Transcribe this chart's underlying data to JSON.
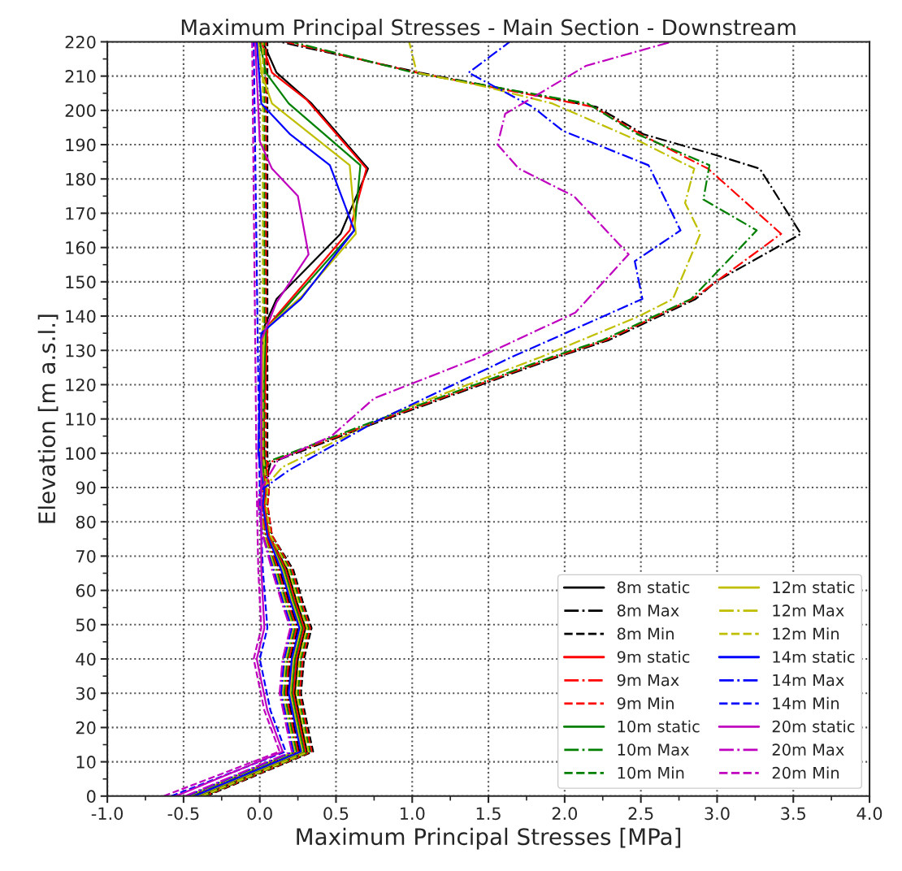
{
  "chart_data": {
    "type": "line",
    "title": "Maximum Principal Stresses - Main Section - Downstream",
    "xlabel": "Maximum Principal Stresses [MPa]",
    "ylabel": "Elevation [m a.s.l.]",
    "xlim": [
      -1.0,
      4.0
    ],
    "ylim": [
      0,
      220
    ],
    "xticks": [
      {
        "value": -1.0,
        "label": "-1.0"
      },
      {
        "value": -0.5,
        "label": "-0.5"
      },
      {
        "value": 0.0,
        "label": "0.0"
      },
      {
        "value": 0.5,
        "label": "0.5"
      },
      {
        "value": 1.0,
        "label": "1.0"
      },
      {
        "value": 1.5,
        "label": "1.5"
      },
      {
        "value": 2.0,
        "label": "2.0"
      },
      {
        "value": 2.5,
        "label": "2.5"
      },
      {
        "value": 3.0,
        "label": "3.0"
      },
      {
        "value": 3.5,
        "label": "3.5"
      },
      {
        "value": 4.0,
        "label": "4.0"
      }
    ],
    "yticks": [
      0,
      10,
      20,
      30,
      40,
      50,
      60,
      70,
      80,
      90,
      100,
      110,
      120,
      130,
      140,
      150,
      160,
      170,
      180,
      190,
      200,
      210,
      220
    ],
    "grid": true,
    "legend": "bottom right",
    "marker": "none",
    "series": [
      {
        "name": "8m static",
        "color": "#000000",
        "line_style": "solid",
        "x": [
          -0.39,
          0.31,
          0.29,
          0.23,
          0.25,
          0.3,
          0.24,
          0.18,
          0.06,
          0.03,
          0.04,
          0.03,
          0.02,
          0.11,
          0.53,
          0.71,
          0.34,
          0.11,
          0.02
        ],
        "values": [
          0,
          13,
          17,
          30,
          40,
          49,
          57,
          66,
          76,
          85,
          89,
          100,
          136,
          145,
          164,
          183,
          202,
          211,
          220
        ]
      },
      {
        "name": "8m Max",
        "color": "#000000",
        "line_style": "dashdot",
        "x": [
          -0.44,
          0.26,
          0.24,
          0.18,
          0.2,
          0.25,
          0.19,
          0.13,
          0.04,
          0.01,
          0.02,
          0.07,
          0.12,
          0.77,
          1.95,
          2.29,
          2.86,
          2.99,
          3.55,
          3.28,
          2.99,
          2.52,
          2.21,
          1.05,
          0.13
        ],
        "values": [
          0,
          13,
          17,
          30,
          40,
          49,
          57,
          66,
          76,
          85,
          89,
          97,
          98,
          109,
          128,
          133,
          145,
          150,
          164,
          183,
          187,
          193,
          201,
          211,
          220
        ]
      },
      {
        "name": "8m Min",
        "color": "#000000",
        "line_style": "dashed",
        "x": [
          -0.35,
          0.35,
          0.33,
          0.27,
          0.29,
          0.34,
          0.28,
          0.22,
          0.08,
          0.05,
          0.06,
          0.05,
          0.05
        ],
        "values": [
          0,
          13,
          17,
          30,
          40,
          49,
          57,
          66,
          76,
          85,
          89,
          100,
          220
        ]
      },
      {
        "name": "9m static",
        "color": "#ff0000",
        "line_style": "solid",
        "x": [
          -0.4,
          0.3,
          0.28,
          0.22,
          0.24,
          0.29,
          0.23,
          0.17,
          0.06,
          0.03,
          0.04,
          0.02,
          0.05,
          0.59,
          0.7,
          0.31,
          0.08,
          0.01
        ],
        "values": [
          0,
          13,
          17,
          30,
          40,
          49,
          57,
          66,
          76,
          85,
          89,
          100,
          137,
          165,
          183,
          203,
          211,
          220
        ]
      },
      {
        "name": "9m Max",
        "color": "#ff0000",
        "line_style": "dashdot",
        "x": [
          -0.45,
          0.25,
          0.23,
          0.17,
          0.19,
          0.24,
          0.18,
          0.12,
          0.04,
          0.01,
          0.02,
          0.05,
          0.1,
          0.75,
          1.93,
          2.27,
          2.84,
          3.42,
          2.94,
          2.5,
          2.19,
          1.03,
          0.17
        ],
        "values": [
          0,
          13,
          17,
          30,
          40,
          49,
          57,
          66,
          76,
          85,
          89,
          97,
          98,
          109,
          128,
          133,
          145,
          164,
          183,
          193,
          201,
          211,
          220
        ]
      },
      {
        "name": "9m Min",
        "color": "#ff0000",
        "line_style": "dashed",
        "x": [
          -0.36,
          0.34,
          0.32,
          0.26,
          0.28,
          0.33,
          0.27,
          0.21,
          0.08,
          0.05,
          0.06,
          0.04,
          0.04
        ],
        "values": [
          0,
          13,
          17,
          30,
          40,
          49,
          57,
          66,
          76,
          85,
          89,
          100,
          220
        ]
      },
      {
        "name": "10m static",
        "color": "#008000",
        "line_style": "solid",
        "x": [
          -0.41,
          0.29,
          0.27,
          0.21,
          0.23,
          0.28,
          0.22,
          0.16,
          0.05,
          0.02,
          0.03,
          0.01,
          0.04,
          0.62,
          0.66,
          0.19,
          0.04,
          0
        ],
        "values": [
          0,
          13,
          17,
          30,
          40,
          49,
          57,
          66,
          76,
          85,
          89,
          100,
          136,
          165,
          184,
          202,
          211,
          220
        ]
      },
      {
        "name": "10m Max",
        "color": "#008000",
        "line_style": "dashdot",
        "x": [
          -0.46,
          0.24,
          0.22,
          0.16,
          0.18,
          0.23,
          0.17,
          0.11,
          0.03,
          0,
          0.01,
          0.03,
          0.08,
          0.73,
          1.91,
          2.25,
          2.83,
          3.26,
          2.91,
          2.95,
          2.48,
          2.15,
          1.01,
          0.21
        ],
        "values": [
          0,
          13,
          17,
          30,
          40,
          49,
          57,
          66,
          76,
          85,
          89,
          97,
          98,
          109,
          128,
          133,
          145,
          165,
          174,
          184,
          193,
          202,
          211,
          220
        ]
      },
      {
        "name": "10m Min",
        "color": "#008000",
        "line_style": "dashed",
        "x": [
          -0.37,
          0.33,
          0.31,
          0.25,
          0.27,
          0.32,
          0.26,
          0.2,
          0.07,
          0.04,
          0.05,
          0.03,
          0.03
        ],
        "values": [
          0,
          13,
          17,
          30,
          40,
          49,
          57,
          66,
          76,
          85,
          89,
          100,
          220
        ]
      },
      {
        "name": "12m static",
        "color": "#bfbf00",
        "line_style": "solid",
        "x": [
          -0.42,
          0.28,
          0.26,
          0.2,
          0.22,
          0.27,
          0.21,
          0.15,
          0.05,
          0.02,
          0.03,
          0,
          0.03,
          0.28,
          0.63,
          0.59,
          0.08,
          0.01,
          -0.01
        ],
        "values": [
          0,
          13,
          17,
          30,
          40,
          49,
          57,
          66,
          76,
          85,
          89,
          100,
          136,
          146,
          164,
          184,
          202,
          211,
          220
        ]
      },
      {
        "name": "12m Max",
        "color": "#bfbf00",
        "line_style": "dashdot",
        "x": [
          -0.47,
          0.23,
          0.21,
          0.15,
          0.17,
          0.22,
          0.16,
          0.1,
          0.03,
          0,
          0.01,
          0.15,
          0.89,
          1.84,
          2.49,
          2.71,
          2.89,
          2.79,
          2.85,
          2.49,
          1.92,
          1.47,
          1.03,
          0.98
        ],
        "values": [
          0,
          13,
          17,
          30,
          40,
          49,
          57,
          66,
          76,
          85,
          89,
          96,
          112,
          128,
          140,
          145,
          164,
          173,
          183,
          191,
          202,
          207,
          211,
          220
        ]
      },
      {
        "name": "12m Min",
        "color": "#bfbf00",
        "line_style": "dashed",
        "x": [
          -0.38,
          0.32,
          0.3,
          0.24,
          0.26,
          0.31,
          0.25,
          0.19,
          0.07,
          0.04,
          0.05,
          0.02,
          0.02
        ],
        "values": [
          0,
          13,
          17,
          30,
          40,
          49,
          57,
          66,
          76,
          85,
          89,
          100,
          220
        ]
      },
      {
        "name": "14m static",
        "color": "#0000ff",
        "line_style": "solid",
        "x": [
          -0.43,
          0.27,
          0.25,
          0.19,
          0.21,
          0.26,
          0.2,
          0.14,
          0.05,
          0.02,
          0.03,
          -0.01,
          0.01,
          0.27,
          0.62,
          0.46,
          0.2,
          0.01,
          -0.02
        ],
        "values": [
          0,
          13,
          17,
          30,
          40,
          49,
          57,
          66,
          76,
          85,
          89,
          100,
          135,
          145,
          165,
          184,
          193,
          202,
          220
        ]
      },
      {
        "name": "14m Max",
        "color": "#0000ff",
        "line_style": "dashdot",
        "x": [
          -0.48,
          0.22,
          0.2,
          0.14,
          0.16,
          0.21,
          0.15,
          0.09,
          0.02,
          -0.01,
          0,
          0.19,
          0.47,
          0.75,
          1.65,
          2.51,
          2.46,
          2.76,
          2.55,
          1.99,
          1.79,
          1.37,
          1.64
        ],
        "values": [
          0,
          13,
          17,
          30,
          40,
          49,
          57,
          66,
          76,
          85,
          89,
          95,
          102,
          109,
          128,
          145,
          156,
          165,
          184,
          194,
          201,
          211,
          220
        ]
      },
      {
        "name": "14m Min",
        "color": "#0000ff",
        "line_style": "dashed",
        "x": [
          -0.58,
          0.17,
          0.07,
          0,
          0.05,
          0.02,
          0,
          -0.04
        ],
        "values": [
          0,
          13,
          25,
          40,
          49,
          66,
          89,
          220
        ]
      },
      {
        "name": "20m static",
        "color": "#bf00bf",
        "line_style": "solid",
        "x": [
          -0.55,
          0.15,
          0.05,
          -0.02,
          0.03,
          0.01,
          0.01,
          0.01,
          0.11,
          0.32,
          0.25,
          0.08,
          0,
          -0.03
        ],
        "values": [
          0,
          13,
          25,
          40,
          49,
          66,
          89,
          133,
          144,
          158,
          175,
          183,
          191,
          220
        ]
      },
      {
        "name": "20m Max",
        "color": "#bf00bf",
        "line_style": "dashdot",
        "x": [
          -0.49,
          0.21,
          0.19,
          0.13,
          0.15,
          0.2,
          0.14,
          0.08,
          0.02,
          -0.01,
          0,
          0.12,
          0.47,
          0.75,
          1.44,
          2.07,
          2.42,
          2.06,
          1.7,
          1.56,
          1.61,
          2.14,
          2.7
        ],
        "values": [
          0,
          13,
          17,
          30,
          40,
          49,
          57,
          66,
          76,
          85,
          89,
          98,
          105,
          116,
          128,
          141,
          158,
          175,
          183,
          190,
          199,
          213,
          220
        ]
      },
      {
        "name": "20m Min",
        "color": "#bf00bf",
        "line_style": "dashed",
        "x": [
          -0.63,
          0.13,
          0.03,
          -0.04,
          0.01,
          -0.01,
          -0.02,
          -0.05
        ],
        "values": [
          0,
          13,
          25,
          40,
          49,
          66,
          89,
          220
        ]
      }
    ]
  }
}
